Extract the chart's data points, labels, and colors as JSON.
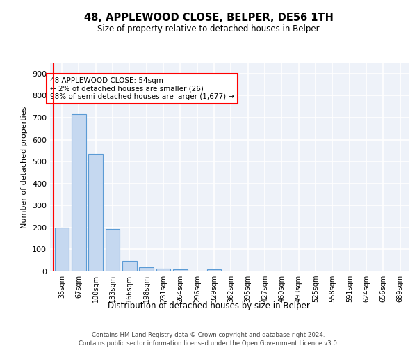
{
  "title1": "48, APPLEWOOD CLOSE, BELPER, DE56 1TH",
  "title2": "Size of property relative to detached houses in Belper",
  "xlabel": "Distribution of detached houses by size in Belper",
  "ylabel": "Number of detached properties",
  "bar_color": "#c5d8f0",
  "bar_edge_color": "#5b9bd5",
  "bg_color": "#eef2f9",
  "grid_color": "#ffffff",
  "categories": [
    "35sqm",
    "67sqm",
    "100sqm",
    "133sqm",
    "166sqm",
    "198sqm",
    "231sqm",
    "264sqm",
    "296sqm",
    "329sqm",
    "362sqm",
    "395sqm",
    "427sqm",
    "460sqm",
    "493sqm",
    "525sqm",
    "558sqm",
    "591sqm",
    "624sqm",
    "656sqm",
    "689sqm"
  ],
  "values": [
    200,
    715,
    535,
    192,
    46,
    20,
    14,
    11,
    0,
    9,
    0,
    0,
    0,
    0,
    0,
    0,
    0,
    0,
    0,
    0,
    0
  ],
  "annotation_text": "48 APPLEWOOD CLOSE: 54sqm\n← 2% of detached houses are smaller (26)\n98% of semi-detached houses are larger (1,677) →",
  "footer1": "Contains HM Land Registry data © Crown copyright and database right 2024.",
  "footer2": "Contains public sector information licensed under the Open Government Licence v3.0.",
  "ylim": [
    0,
    950
  ],
  "yticks": [
    0,
    100,
    200,
    300,
    400,
    500,
    600,
    700,
    800,
    900
  ]
}
